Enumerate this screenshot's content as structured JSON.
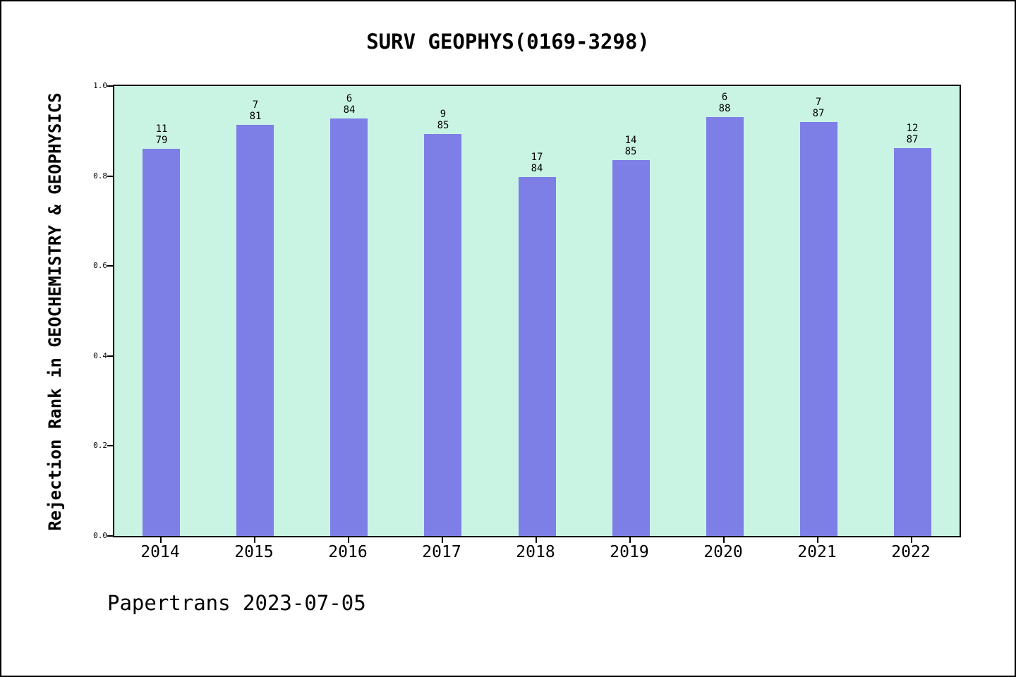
{
  "title": "SURV GEOPHYS(0169-3298)",
  "footer": "Papertrans 2023-07-05",
  "chart_data": {
    "type": "bar",
    "title": "SURV GEOPHYS(0169-3298)",
    "xlabel": "",
    "ylabel": "Rejection Rank in GEOCHEMISTRY & GEOPHYSICS",
    "categories": [
      "2014",
      "2015",
      "2016",
      "2017",
      "2018",
      "2019",
      "2020",
      "2021",
      "2022"
    ],
    "values": [
      0.8608,
      0.9136,
      0.9286,
      0.8941,
      0.7976,
      0.8353,
      0.9318,
      0.9195,
      0.8621
    ],
    "bar_labels": [
      {
        "rank": "11",
        "total": "79"
      },
      {
        "rank": "7",
        "total": "81"
      },
      {
        "rank": "6",
        "total": "84"
      },
      {
        "rank": "9",
        "total": "85"
      },
      {
        "rank": "17",
        "total": "84"
      },
      {
        "rank": "14",
        "total": "85"
      },
      {
        "rank": "6",
        "total": "88"
      },
      {
        "rank": "7",
        "total": "87"
      },
      {
        "rank": "12",
        "total": "87"
      }
    ],
    "ylim": [
      0.0,
      1.0
    ],
    "yticks": [
      "0.0",
      "0.2",
      "0.4",
      "0.6",
      "0.8",
      "1.0"
    ],
    "grid": false,
    "legend": "none",
    "colors": {
      "bar": "#7e7ee7",
      "plot_bg": "#c9f4e3",
      "page_bg": "#ffffff",
      "axis": "#000000"
    }
  }
}
